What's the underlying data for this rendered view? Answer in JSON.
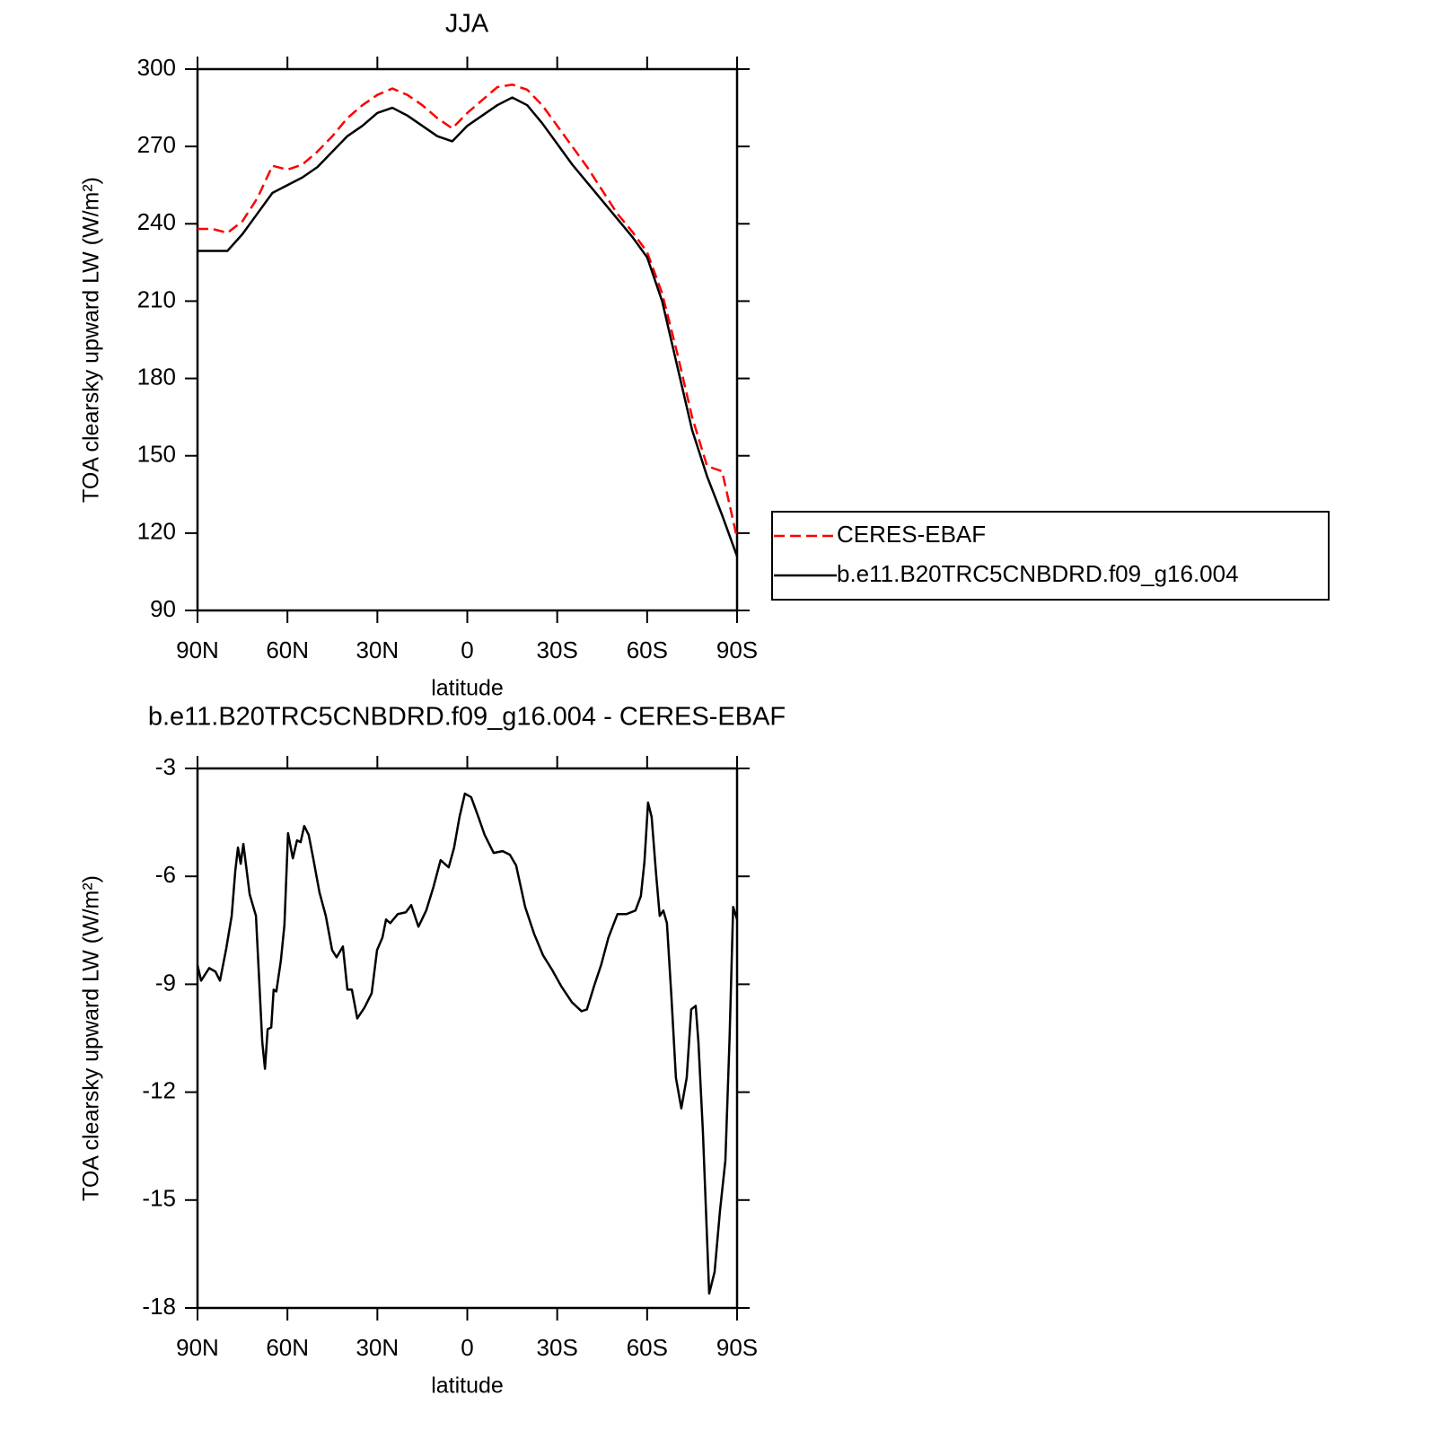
{
  "chart_data": [
    {
      "type": "line",
      "title": "JJA",
      "x_label": "latitude",
      "y_label": "TOA clearsky upward LW (W/m²)",
      "x": [
        90,
        85,
        80,
        75,
        70,
        65,
        60,
        55,
        50,
        45,
        40,
        35,
        30,
        25,
        20,
        15,
        10,
        5,
        0,
        -5,
        -10,
        -15,
        -20,
        -25,
        -30,
        -35,
        -40,
        -45,
        -50,
        -55,
        -60,
        -65,
        -70,
        -75,
        -80,
        -85,
        -90
      ],
      "series": [
        {
          "name": "CERES-EBAF",
          "color": "#ff0000",
          "line_style": "dashed",
          "values": [
            238,
            238,
            236.5,
            241,
            250,
            262.5,
            261,
            263,
            268,
            274,
            281,
            286,
            290,
            292.5,
            290,
            286,
            281,
            277,
            283,
            288,
            293,
            294,
            292,
            286,
            278,
            270,
            262,
            253,
            244,
            237,
            229,
            213,
            190,
            165,
            146,
            144,
            118
          ]
        },
        {
          "name": "b.e11.B20TRC5CNBDRD.f09_g16.004",
          "color": "#000000",
          "line_style": "solid",
          "values": [
            229.5,
            229.5,
            229.5,
            236,
            244,
            252,
            255,
            258,
            262,
            268,
            274,
            278,
            283,
            285,
            282,
            278,
            274,
            272,
            278,
            282,
            286,
            289,
            286,
            279,
            271,
            263,
            256,
            249,
            242,
            235,
            227,
            210,
            185,
            160,
            142,
            127,
            111
          ]
        }
      ],
      "xlim": [
        90,
        -90
      ],
      "xticks": [
        {
          "value": 90,
          "label": "90N"
        },
        {
          "value": 60,
          "label": "60N"
        },
        {
          "value": 30,
          "label": "30N"
        },
        0,
        {
          "value": -30,
          "label": "30S"
        },
        {
          "value": -60,
          "label": "60S"
        },
        {
          "value": -90,
          "label": "90S"
        }
      ],
      "ylim": [
        90,
        300
      ],
      "yticks": [
        90,
        120,
        150,
        180,
        210,
        240,
        270,
        300
      ],
      "legend": "right"
    },
    {
      "type": "line",
      "title": "b.e11.B20TRC5CNBDRD.f09_g16.004 - CERES-EBAF",
      "x_label": "latitude",
      "y_label": "TOA clearsky upward LW (W/m²)",
      "x": [
        90,
        88.8,
        86.1,
        84,
        82.5,
        80.4,
        78.6,
        77.4,
        76.5,
        75.6,
        74.7,
        72.6,
        70.5,
        68.4,
        67.5,
        66.6,
        65.4,
        64.6,
        63.7,
        62.2,
        61,
        59.8,
        58.2,
        56.8,
        55.6,
        54.4,
        52.9,
        51.4,
        49.3,
        47.2,
        45.1,
        43.6,
        41.5,
        40,
        38.5,
        36.7,
        34.3,
        31.9,
        30.1,
        28.3,
        27.1,
        25.7,
        23.2,
        20.5,
        18.7,
        16.3,
        13.7,
        11.3,
        8.9,
        6.2,
        4.4,
        2.6,
        0.8,
        -1.3,
        -3.7,
        -5.8,
        -8.8,
        -11.8,
        -14.2,
        -16.3,
        -19.3,
        -22.3,
        -25.3,
        -28.3,
        -31.3,
        -34.9,
        -38.1,
        -39.9,
        -42.3,
        -44.7,
        -47.1,
        -50.1,
        -53.1,
        -56.1,
        -57.9,
        -59.1,
        -60.3,
        -61.5,
        -63,
        -64.2,
        -65.4,
        -66.6,
        -68.1,
        -69.6,
        -71.4,
        -73.2,
        -74.7,
        -76.2,
        -77.1,
        -78.6,
        -80.7,
        -82.5,
        -84.3,
        -86.1,
        -87.5,
        -88.7,
        -90
      ],
      "values": [
        -8.47,
        -8.9,
        -8.55,
        -8.65,
        -8.9,
        -8.0,
        -7.1,
        -5.85,
        -5.2,
        -5.65,
        -5.1,
        -6.5,
        -7.1,
        -10.6,
        -11.35,
        -10.25,
        -10.2,
        -9.15,
        -9.2,
        -8.35,
        -7.35,
        -4.8,
        -5.5,
        -5.0,
        -5.05,
        -4.6,
        -4.85,
        -5.5,
        -6.45,
        -7.1,
        -8.05,
        -8.25,
        -7.95,
        -9.15,
        -9.15,
        -9.95,
        -9.65,
        -9.25,
        -8.05,
        -7.7,
        -7.2,
        -7.3,
        -7.05,
        -7.0,
        -6.8,
        -7.4,
        -6.95,
        -6.3,
        -5.55,
        -5.75,
        -5.2,
        -4.35,
        -3.7,
        -3.8,
        -4.35,
        -4.85,
        -5.35,
        -5.3,
        -5.4,
        -5.7,
        -6.85,
        -7.6,
        -8.2,
        -8.6,
        -9.05,
        -9.5,
        -9.75,
        -9.7,
        -9.05,
        -8.45,
        -7.7,
        -7.05,
        -7.05,
        -6.95,
        -6.55,
        -5.6,
        -3.95,
        -4.35,
        -5.95,
        -7.1,
        -6.95,
        -7.3,
        -9.35,
        -11.6,
        -12.45,
        -11.6,
        -9.7,
        -9.6,
        -10.6,
        -13.1,
        -17.6,
        -17.0,
        -15.3,
        -13.9,
        -10.5,
        -6.85,
        -7.2
      ],
      "color": "#000000",
      "xlim": [
        90,
        -90
      ],
      "xticks": [
        {
          "value": 90,
          "label": "90N"
        },
        {
          "value": 60,
          "label": "60N"
        },
        {
          "value": 30,
          "label": "30N"
        },
        0,
        {
          "value": -30,
          "label": "30S"
        },
        {
          "value": -60,
          "label": "60S"
        },
        {
          "value": -90,
          "label": "90S"
        }
      ],
      "ylim": [
        -18,
        -3
      ],
      "yticks": [
        -18,
        -15,
        -12,
        -9,
        -6,
        -3
      ]
    }
  ]
}
